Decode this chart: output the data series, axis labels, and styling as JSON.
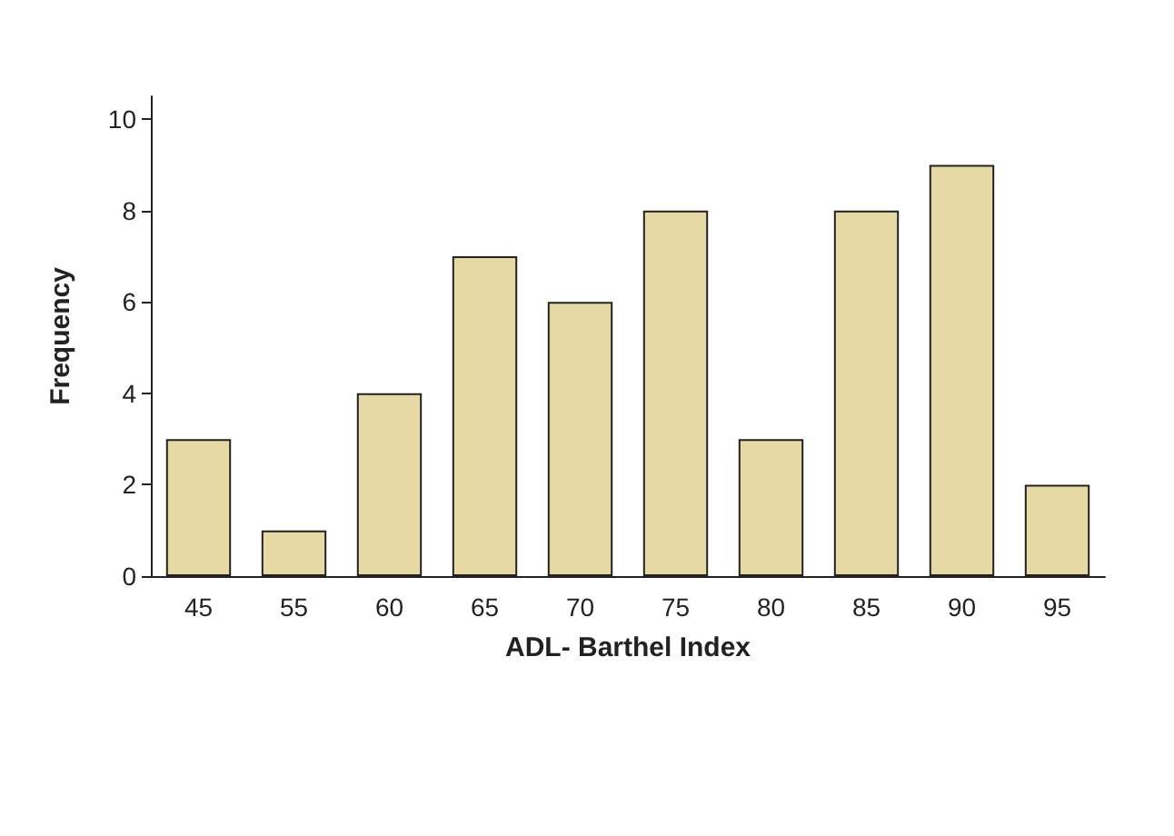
{
  "chart_data": {
    "type": "bar",
    "xlabel": "ADL- Barthel Index",
    "ylabel": "Frequency",
    "categories": [
      "45",
      "55",
      "60",
      "65",
      "70",
      "75",
      "80",
      "85",
      "90",
      "95"
    ],
    "values": [
      3,
      1,
      4,
      7,
      6,
      8,
      3,
      8,
      9,
      2
    ],
    "color": "#e6d9a3",
    "ylim": [
      0,
      10.5
    ],
    "yticks": [
      0,
      2,
      4,
      6,
      8,
      10
    ],
    "grid": false
  }
}
